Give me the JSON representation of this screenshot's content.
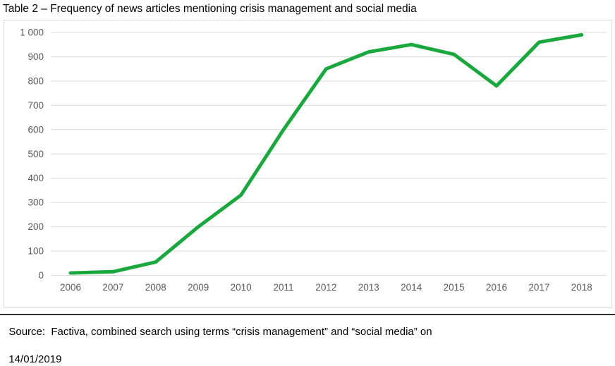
{
  "caption": "Table 2 – Frequency of news articles mentioning crisis management and social media",
  "source": {
    "line1": "Source:  Factiva, combined search using terms “crisis management” and “social media” on",
    "line2": "14/01/2019"
  },
  "chart_data": {
    "type": "line",
    "title": "Frequency of news articles mentioning crisis management and social media",
    "x": [
      2006,
      2007,
      2008,
      2009,
      2010,
      2011,
      2012,
      2013,
      2014,
      2015,
      2016,
      2017,
      2018
    ],
    "values": [
      10,
      15,
      55,
      200,
      330,
      600,
      850,
      920,
      950,
      910,
      780,
      960,
      990
    ],
    "xlabel": "",
    "ylabel": "",
    "ylim": [
      0,
      1000
    ],
    "ytick_step": 100,
    "ytick_labels": [
      "0",
      "100",
      "200",
      "300",
      "400",
      "500",
      "600",
      "700",
      "800",
      "900",
      "1 000"
    ],
    "grid": true,
    "legend": "none",
    "colors": {
      "line": "#1aa83e",
      "gridline": "#d9d9d9",
      "tick_label": "#595959",
      "chart_border": "#d9d9d9",
      "divider": "#303030",
      "text": "#000000"
    }
  }
}
